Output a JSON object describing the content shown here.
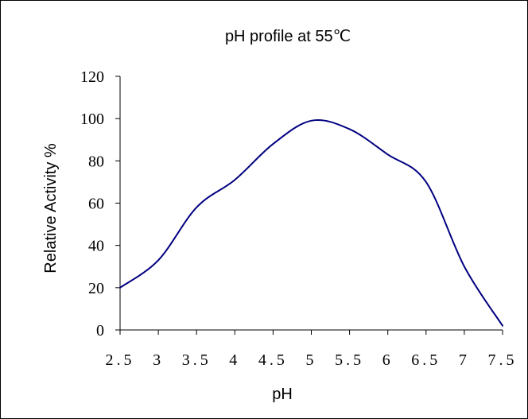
{
  "chart_data": {
    "type": "line",
    "title": "pH profile at 55℃",
    "xlabel": "pH",
    "ylabel": "Relative Activity %",
    "x_ticks": [
      "2.5",
      "3",
      "3.5",
      "4",
      "4.5",
      "5",
      "5.5",
      "6",
      "6.5",
      "7",
      "7.5"
    ],
    "y_ticks": [
      "0",
      "20",
      "40",
      "60",
      "80",
      "100",
      "120"
    ],
    "xlim": [
      2.5,
      7.5
    ],
    "ylim": [
      0,
      120
    ],
    "grid": false,
    "legend": "none",
    "line_color": "#000080",
    "series": [
      {
        "x": [
          2.5,
          3,
          3.5,
          4,
          4.5,
          5,
          5.5,
          6,
          6.5,
          7,
          7.5
        ],
        "values": [
          20,
          33,
          58,
          71,
          88,
          99,
          95,
          83,
          70,
          30,
          2
        ]
      }
    ]
  }
}
